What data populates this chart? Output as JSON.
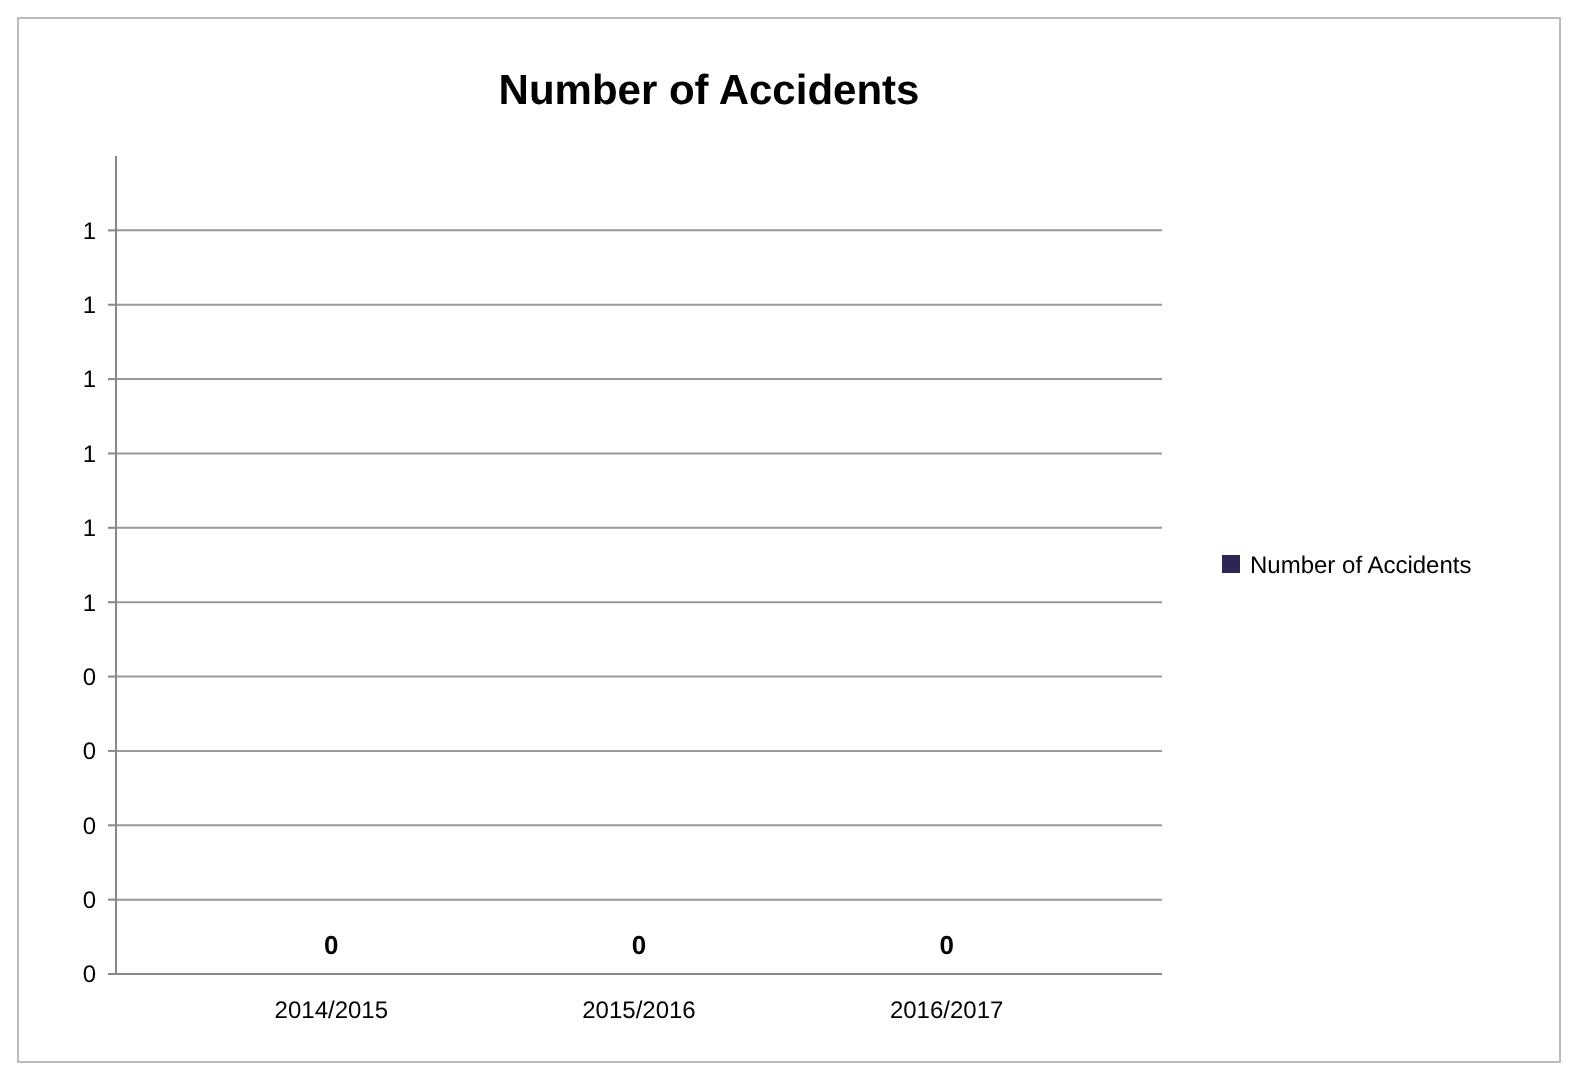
{
  "chart_data": {
    "type": "bar",
    "title": "Number of Accidents",
    "categories": [
      "2014/2015",
      "2015/2016",
      "2016/2017"
    ],
    "series": [
      {
        "name": "Number of Accidents",
        "color": "#2e2456",
        "values": [
          0,
          0,
          0
        ]
      }
    ],
    "ylim": [
      0,
      1.1
    ],
    "yticks": [
      0,
      {
        "value": 0.1,
        "label": "0"
      },
      {
        "value": 0.2,
        "label": "0"
      },
      {
        "value": 0.3,
        "label": "0"
      },
      {
        "value": 0.4,
        "label": "0"
      },
      {
        "value": 0.5,
        "label": "1"
      },
      {
        "value": 0.6,
        "label": "1"
      },
      {
        "value": 0.7,
        "label": "1"
      },
      {
        "value": 0.8,
        "label": "1"
      },
      {
        "value": 0.9,
        "label": "1"
      },
      1
    ],
    "grid": "y",
    "legend": "right",
    "data_labels": true
  }
}
